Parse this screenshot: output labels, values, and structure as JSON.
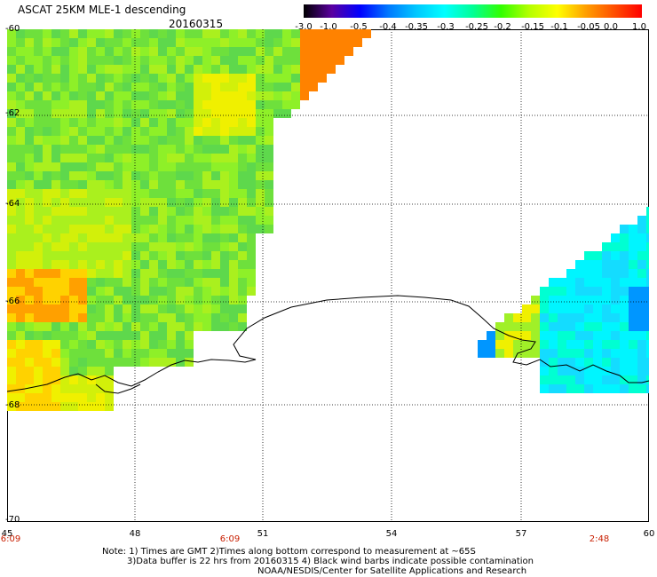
{
  "header": {
    "title": "ASCAT 25KM MLE-1 descending",
    "date": "20160315"
  },
  "colorbar": {
    "labels": [
      "-3.0",
      "-1.0",
      "-0.5",
      "-0.4",
      "-0.35",
      "-0.3",
      "-0.25",
      "-0.2",
      "-0.15",
      "-0.1",
      "-0.05",
      "0.0",
      "1.0"
    ],
    "colors": [
      "#000000",
      "#5a00a0",
      "#0000ff",
      "#0078ff",
      "#00c8ff",
      "#00ffff",
      "#00ff96",
      "#32ff00",
      "#b4ff00",
      "#ffff00",
      "#ffa000",
      "#ff5000",
      "#ff0000"
    ]
  },
  "axes": {
    "lat_labels": [
      "-60",
      "-62",
      "-64",
      "-66",
      "-68",
      "-70"
    ],
    "lon_labels": [
      "45",
      "48",
      "51",
      "54",
      "57",
      "60"
    ],
    "time_labels": [
      "6:09",
      "6:09",
      "2:48"
    ]
  },
  "map": {
    "lat_range": [
      -70,
      -60
    ],
    "lon_range": [
      45,
      60
    ],
    "grid": true,
    "coastline_color": "#000000",
    "west_swath_palette": [
      "#6ee03c",
      "#8ef028",
      "#5ed84c",
      "#aaf01e",
      "#d2f00a",
      "#f0f000",
      "#ffd200",
      "#ffa000",
      "#ff8200"
    ],
    "east_swath_palette": [
      "#00ffd2",
      "#00f5ff",
      "#14dcff",
      "#50c8ff",
      "#0096ff",
      "#5aff5a",
      "#a0f028",
      "#f0f000"
    ]
  },
  "notes": {
    "line1": "Note: 1) Times are GMT 2)Times along bottom correspond to measurement at ~65S",
    "line2": "3)Data buffer is 22 hrs from 20160315 4) Black wind barbs indicate possible contamination",
    "line3": "NOAA/NESDIS/Center for Satellite Applications and Research"
  }
}
